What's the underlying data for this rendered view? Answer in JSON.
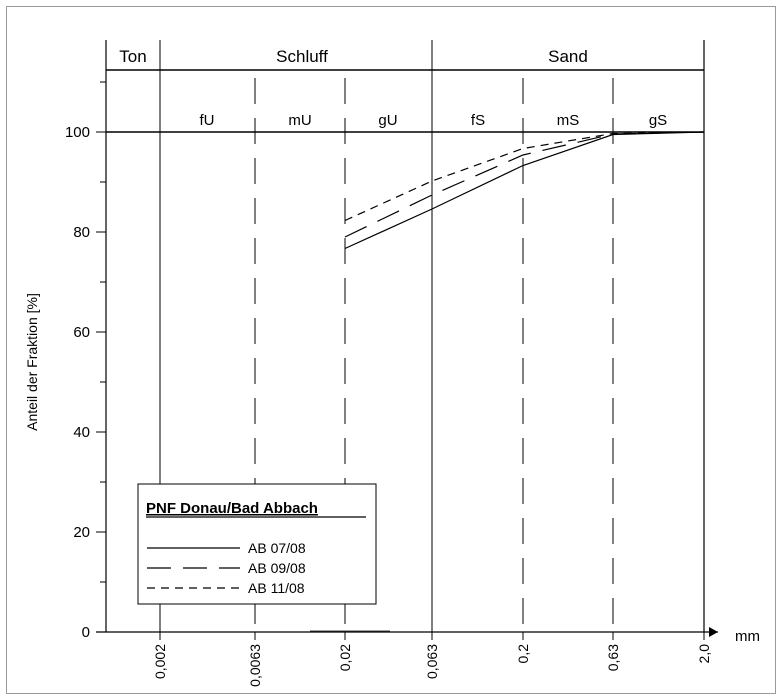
{
  "chart_data": {
    "type": "line",
    "title": "",
    "xlabel": "mm",
    "ylabel": "Anteil der Fraktion [%]",
    "x_scale": "categorical-log (grain size classes)",
    "x_ticks": [
      "0,002",
      "0,0063",
      "0,02",
      "0,063",
      "0,2",
      "0,63",
      "2,0"
    ],
    "ylim": [
      0,
      100
    ],
    "y_ticks": [
      0,
      20,
      40,
      60,
      80,
      100
    ],
    "grid": false,
    "classes_top": [
      "Ton",
      "Schluff",
      "Sand"
    ],
    "subclasses": [
      "fU",
      "mU",
      "gU",
      "fS",
      "mS",
      "gS"
    ],
    "series": [
      {
        "name": "AB 07/08",
        "style": "solid",
        "points": [
          [
            0.02,
            76.7
          ],
          [
            0.063,
            84.6
          ],
          [
            0.2,
            93.3
          ],
          [
            0.63,
            99.5
          ],
          [
            2.0,
            100
          ]
        ]
      },
      {
        "name": "AB 09/08",
        "style": "long-dash",
        "points": [
          [
            0.02,
            79.0
          ],
          [
            0.063,
            87.4
          ],
          [
            0.2,
            95.4
          ],
          [
            0.63,
            99.6
          ],
          [
            2.0,
            100
          ]
        ]
      },
      {
        "name": "AB 11/08",
        "style": "short-dash",
        "points": [
          [
            0.02,
            82.3
          ],
          [
            0.063,
            90.2
          ],
          [
            0.2,
            96.7
          ],
          [
            0.63,
            99.7
          ],
          [
            2.0,
            100
          ]
        ]
      }
    ],
    "legend": {
      "title": "PNF Donau/Bad Abbach",
      "placement": "bottom-left"
    }
  }
}
